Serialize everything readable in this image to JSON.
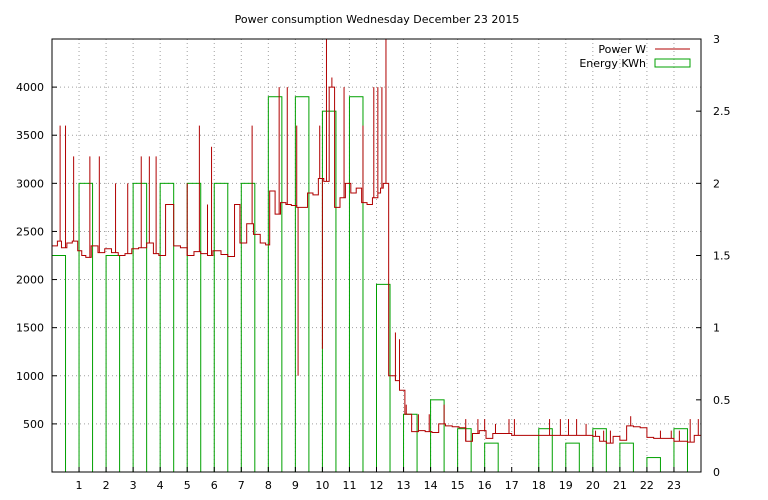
{
  "chart_data": {
    "type": "line",
    "title": "Power consumption Wednesday December 23 2015",
    "xlabel": "",
    "ylabel": "",
    "y2label": "",
    "grid": true,
    "legend_position": "top-right",
    "xlim": [
      0,
      24
    ],
    "ylim": [
      0,
      4500
    ],
    "y2lim": [
      0,
      3
    ],
    "x_ticks": [
      "1",
      "2",
      "3",
      "4",
      "5",
      "6",
      "7",
      "8",
      "9",
      "10",
      "11",
      "12",
      "13",
      "14",
      "15",
      "16",
      "17",
      "18",
      "19",
      "20",
      "21",
      "22",
      "23"
    ],
    "y_ticks": [
      "500",
      "1000",
      "1500",
      "2000",
      "2500",
      "3000",
      "3500",
      "4000"
    ],
    "y2_ticks": [
      "0",
      "0.5",
      "1",
      "1.5",
      "2",
      "2.5",
      "3"
    ],
    "colors": {
      "power": "#b00000",
      "energy": "#00a000"
    },
    "series": [
      {
        "name": "Power W",
        "axis": "left",
        "style": "line",
        "x": [
          0,
          0.2,
          0.35,
          0.55,
          0.75,
          0.95,
          1.1,
          1.25,
          1.45,
          1.7,
          1.95,
          2.2,
          2.45,
          2.7,
          2.95,
          3.2,
          3.5,
          3.75,
          3.95,
          4.2,
          4.5,
          4.75,
          5.0,
          5.25,
          5.5,
          5.75,
          5.95,
          6.25,
          6.5,
          6.75,
          6.95,
          7.2,
          7.45,
          7.7,
          7.9,
          8.05,
          8.25,
          8.45,
          8.65,
          8.85,
          9.05,
          9.25,
          9.45,
          9.65,
          9.85,
          10.05,
          10.25,
          10.45,
          10.65,
          10.85,
          11.05,
          11.25,
          11.45,
          11.65,
          11.85,
          12.05,
          12.15,
          12.25,
          12.45,
          12.7,
          12.85,
          13.05,
          13.3,
          13.55,
          13.8,
          14.05,
          14.3,
          14.55,
          14.8,
          15.05,
          15.3,
          15.55,
          15.8,
          16.05,
          16.3,
          16.6,
          17.0,
          17.5,
          18.0,
          18.5,
          19.0,
          19.5,
          20.0,
          20.25,
          20.5,
          20.75,
          21.0,
          21.25,
          21.5,
          21.75,
          22.0,
          22.25,
          22.5,
          22.75,
          23.0,
          23.25,
          23.5,
          23.75,
          24.0
        ],
        "values": [
          2350,
          2400,
          2330,
          2380,
          2400,
          2300,
          2250,
          2230,
          2350,
          2280,
          2320,
          2280,
          2250,
          2270,
          2320,
          2330,
          2380,
          2270,
          2250,
          2780,
          2350,
          2330,
          2250,
          2290,
          2270,
          2250,
          2300,
          2260,
          2240,
          2780,
          2380,
          2580,
          2470,
          2380,
          2360,
          2920,
          2680,
          2800,
          2780,
          2770,
          2750,
          2750,
          2900,
          2880,
          3050,
          3020,
          4000,
          2750,
          2850,
          3000,
          2900,
          2950,
          2800,
          2780,
          2850,
          2900,
          2950,
          3000,
          1000,
          950,
          850,
          600,
          420,
          430,
          420,
          410,
          500,
          480,
          470,
          460,
          320,
          400,
          430,
          350,
          400,
          400,
          380,
          380,
          380,
          380,
          380,
          380,
          370,
          320,
          300,
          370,
          330,
          480,
          470,
          460,
          360,
          350,
          350,
          350,
          320,
          320,
          310,
          380,
          480
        ],
        "spikes": [
          {
            "x": 0.3,
            "value": 3600
          },
          {
            "x": 0.5,
            "value": 3600
          },
          {
            "x": 0.8,
            "value": 3280
          },
          {
            "x": 1.4,
            "value": 3280
          },
          {
            "x": 1.75,
            "value": 3280
          },
          {
            "x": 2.35,
            "value": 3000
          },
          {
            "x": 2.8,
            "value": 3000
          },
          {
            "x": 3.3,
            "value": 3280
          },
          {
            "x": 3.6,
            "value": 3280
          },
          {
            "x": 3.85,
            "value": 3280
          },
          {
            "x": 5.0,
            "value": 3000
          },
          {
            "x": 5.45,
            "value": 3600
          },
          {
            "x": 5.75,
            "value": 2780
          },
          {
            "x": 5.9,
            "value": 3380
          },
          {
            "x": 7.4,
            "value": 3600
          },
          {
            "x": 8.4,
            "value": 4000
          },
          {
            "x": 8.7,
            "value": 4000
          },
          {
            "x": 9.05,
            "value": 3600
          },
          {
            "x": 9.1,
            "value": 1000
          },
          {
            "x": 9.9,
            "value": 3600
          },
          {
            "x": 10.0,
            "value": 1280
          },
          {
            "x": 10.15,
            "value": 4500
          },
          {
            "x": 10.35,
            "value": 4100
          },
          {
            "x": 10.8,
            "value": 4000
          },
          {
            "x": 11.5,
            "value": 3600
          },
          {
            "x": 11.9,
            "value": 4000
          },
          {
            "x": 12.05,
            "value": 4000
          },
          {
            "x": 12.2,
            "value": 4000
          },
          {
            "x": 12.35,
            "value": 4500
          },
          {
            "x": 12.7,
            "value": 1450
          },
          {
            "x": 12.85,
            "value": 1380
          },
          {
            "x": 13.1,
            "value": 700
          },
          {
            "x": 13.55,
            "value": 600
          },
          {
            "x": 13.95,
            "value": 600
          },
          {
            "x": 14.5,
            "value": 700
          },
          {
            "x": 15.3,
            "value": 550
          },
          {
            "x": 15.75,
            "value": 550
          },
          {
            "x": 16.0,
            "value": 550
          },
          {
            "x": 16.4,
            "value": 500
          },
          {
            "x": 16.9,
            "value": 550
          },
          {
            "x": 17.1,
            "value": 550
          },
          {
            "x": 18.4,
            "value": 550
          },
          {
            "x": 18.8,
            "value": 550
          },
          {
            "x": 19.1,
            "value": 550
          },
          {
            "x": 19.4,
            "value": 550
          },
          {
            "x": 19.75,
            "value": 500
          },
          {
            "x": 20.1,
            "value": 430
          },
          {
            "x": 20.4,
            "value": 430
          },
          {
            "x": 20.65,
            "value": 430
          },
          {
            "x": 21.4,
            "value": 580
          },
          {
            "x": 22.5,
            "value": 430
          },
          {
            "x": 22.9,
            "value": 430
          },
          {
            "x": 23.2,
            "value": 430
          },
          {
            "x": 23.6,
            "value": 550
          },
          {
            "x": 23.9,
            "value": 550
          }
        ]
      },
      {
        "name": "Energy KWh",
        "axis": "right",
        "style": "bar",
        "x": [
          0,
          0.5,
          1,
          1.5,
          2,
          2.5,
          3,
          3.5,
          4,
          4.5,
          5,
          5.5,
          6,
          6.5,
          7,
          7.5,
          8,
          8.5,
          9,
          9.5,
          10,
          10.5,
          11,
          11.5,
          12,
          12.5,
          13,
          13.5,
          14,
          14.5,
          15,
          15.5,
          16,
          16.5,
          17,
          17.5,
          18,
          18.5,
          19,
          19.5,
          20,
          20.5,
          21,
          21.5,
          22,
          22.5,
          23,
          23.5
        ],
        "values": [
          1.5,
          0,
          2.0,
          0,
          1.5,
          0,
          2.0,
          0,
          2.0,
          0,
          2.0,
          0,
          2.0,
          0,
          2.0,
          0,
          2.6,
          0,
          2.6,
          0,
          2.5,
          0,
          2.6,
          0,
          1.3,
          0,
          0.4,
          0,
          0.5,
          0,
          0.3,
          0,
          0.2,
          0,
          0,
          0,
          0.3,
          0,
          0.2,
          0,
          0.3,
          0,
          0.2,
          0,
          0.1,
          0,
          0.3,
          0
        ]
      }
    ]
  }
}
